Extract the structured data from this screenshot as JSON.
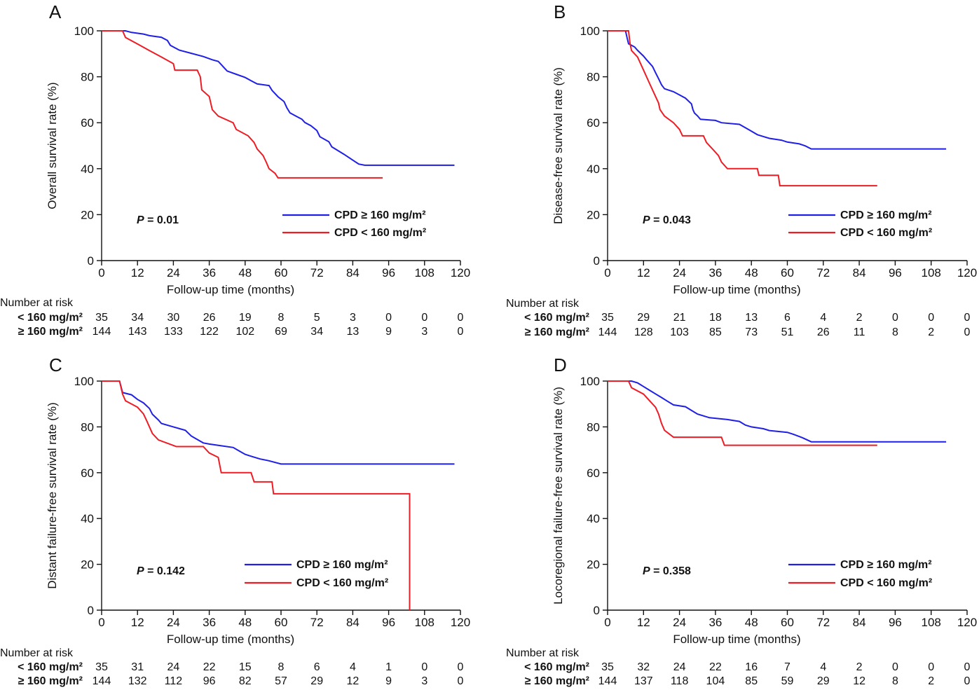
{
  "colors": {
    "blue": "#1f1fe6",
    "red": "#ee1c24",
    "axis": "#111111"
  },
  "chart_data": [
    {
      "type": "line",
      "panel_label": "A",
      "ylabel": "Overall survival rate (%)",
      "xlabel": "Follow-up time (months)",
      "xlim": [
        0,
        120
      ],
      "ylim": [
        0,
        100
      ],
      "xticks": [
        0,
        12,
        24,
        36,
        48,
        60,
        72,
        84,
        96,
        108,
        120
      ],
      "yticks": [
        0,
        20,
        40,
        60,
        80,
        100
      ],
      "p_prefix": "P",
      "p_value": " = 0.01",
      "series": [
        {
          "name": "CPD ≥ 160 mg/m²",
          "color": "#1f1fe6",
          "points": [
            [
              0,
              100
            ],
            [
              8,
              100
            ],
            [
              10,
              99.3
            ],
            [
              14,
              98.6
            ],
            [
              16,
              97.9
            ],
            [
              20,
              97.2
            ],
            [
              22,
              95.8
            ],
            [
              23,
              93.7
            ],
            [
              26,
              91.6
            ],
            [
              30,
              90.2
            ],
            [
              34,
              88.8
            ],
            [
              37,
              87.4
            ],
            [
              39,
              86.7
            ],
            [
              40,
              85.3
            ],
            [
              41,
              83.9
            ],
            [
              42,
              82.5
            ],
            [
              45,
              81.1
            ],
            [
              48,
              79.7
            ],
            [
              50,
              78.3
            ],
            [
              52,
              76.9
            ],
            [
              56,
              76.2
            ],
            [
              57,
              74.1
            ],
            [
              59,
              71.3
            ],
            [
              61,
              69.2
            ],
            [
              62,
              66.4
            ],
            [
              63,
              64.3
            ],
            [
              65,
              62.9
            ],
            [
              67,
              61.5
            ],
            [
              68,
              60.1
            ],
            [
              70,
              58.7
            ],
            [
              72,
              56.6
            ],
            [
              73,
              53.9
            ],
            [
              76,
              51.7
            ],
            [
              77,
              49.5
            ],
            [
              81,
              46.3
            ],
            [
              86,
              42.0
            ],
            [
              88,
              41.5
            ],
            [
              118,
              41.5
            ]
          ]
        },
        {
          "name": "CPD < 160 mg/m²",
          "color": "#ee1c24",
          "points": [
            [
              0,
              100
            ],
            [
              7,
              100
            ],
            [
              8,
              97.1
            ],
            [
              12,
              94.3
            ],
            [
              16,
              91.4
            ],
            [
              20,
              88.6
            ],
            [
              24,
              85.7
            ],
            [
              24.5,
              82.9
            ],
            [
              32,
              82.9
            ],
            [
              33,
              80.0
            ],
            [
              33.5,
              74.3
            ],
            [
              36,
              71.4
            ],
            [
              37,
              65.7
            ],
            [
              39,
              62.9
            ],
            [
              44,
              60.0
            ],
            [
              45,
              57.1
            ],
            [
              49,
              54.3
            ],
            [
              51,
              51.4
            ],
            [
              52,
              48.6
            ],
            [
              54,
              45.7
            ],
            [
              55,
              43.0
            ],
            [
              56,
              40.0
            ],
            [
              58,
              38.0
            ],
            [
              59,
              36.0
            ],
            [
              94,
              36.0
            ]
          ]
        }
      ],
      "risk": {
        "title": "Number at risk",
        "rows": [
          {
            "label": "< 160 mg/m²",
            "values": [
              "35",
              "34",
              "30",
              "26",
              "19",
              "8",
              "5",
              "3",
              "0",
              "0",
              "0"
            ]
          },
          {
            "label": "≥ 160 mg/m²",
            "values": [
              "144",
              "143",
              "133",
              "122",
              "102",
              "69",
              "34",
              "13",
              "9",
              "3",
              "0"
            ]
          }
        ]
      }
    },
    {
      "type": "line",
      "panel_label": "B",
      "ylabel": "Disease-free survival rate (%)",
      "xlabel": "Follow-up time (months)",
      "xlim": [
        0,
        120
      ],
      "ylim": [
        0,
        100
      ],
      "xticks": [
        0,
        12,
        24,
        36,
        48,
        60,
        72,
        84,
        96,
        108,
        120
      ],
      "yticks": [
        0,
        20,
        40,
        60,
        80,
        100
      ],
      "p_prefix": "P",
      "p_value": " = 0.043",
      "series": [
        {
          "name": "CPD ≥ 160 mg/m²",
          "color": "#1f1fe6",
          "points": [
            [
              0,
              100
            ],
            [
              6,
              100
            ],
            [
              6.5,
              97
            ],
            [
              7,
              94.4
            ],
            [
              9,
              93
            ],
            [
              10,
              91.5
            ],
            [
              12,
              89
            ],
            [
              13,
              87.4
            ],
            [
              15,
              84.5
            ],
            [
              16,
              81.8
            ],
            [
              17,
              79.2
            ],
            [
              18,
              76.5
            ],
            [
              19,
              74.8
            ],
            [
              22,
              73.5
            ],
            [
              24,
              72.1
            ],
            [
              26,
              70.7
            ],
            [
              28,
              68.2
            ],
            [
              28.5,
              65.7
            ],
            [
              29,
              64.2
            ],
            [
              30,
              63
            ],
            [
              31,
              61.5
            ],
            [
              36,
              61
            ],
            [
              38,
              60
            ],
            [
              44,
              59.3
            ],
            [
              46,
              57.8
            ],
            [
              48,
              56.3
            ],
            [
              50,
              54.8
            ],
            [
              52,
              54
            ],
            [
              54,
              53.2
            ],
            [
              58,
              52.4
            ],
            [
              60,
              51.6
            ],
            [
              64,
              50.8
            ],
            [
              66,
              49.9
            ],
            [
              68,
              48.6
            ],
            [
              113,
              48.6
            ]
          ]
        },
        {
          "name": "CPD < 160 mg/m²",
          "color": "#ee1c24",
          "points": [
            [
              0,
              100
            ],
            [
              7,
              100
            ],
            [
              7.5,
              94.3
            ],
            [
              8,
              91.4
            ],
            [
              10,
              88.6
            ],
            [
              12,
              82.9
            ],
            [
              13,
              80
            ],
            [
              14,
              77.1
            ],
            [
              15,
              74.3
            ],
            [
              17,
              68.6
            ],
            [
              17.5,
              65.7
            ],
            [
              19,
              62.9
            ],
            [
              22,
              60
            ],
            [
              24,
              57.1
            ],
            [
              25,
              54.3
            ],
            [
              32,
              54.3
            ],
            [
              33,
              51.4
            ],
            [
              35,
              48.6
            ],
            [
              37,
              45.7
            ],
            [
              38,
              42.9
            ],
            [
              40,
              40
            ],
            [
              50,
              40
            ],
            [
              50.5,
              37.1
            ],
            [
              57,
              37.1
            ],
            [
              57.5,
              32.6
            ],
            [
              90,
              32.6
            ]
          ]
        }
      ],
      "risk": {
        "title": "Number at risk",
        "rows": [
          {
            "label": "< 160 mg/m²",
            "values": [
              "35",
              "29",
              "21",
              "18",
              "13",
              "6",
              "4",
              "2",
              "0",
              "0",
              "0"
            ]
          },
          {
            "label": "≥ 160 mg/m²",
            "values": [
              "144",
              "128",
              "103",
              "85",
              "73",
              "51",
              "26",
              "11",
              "8",
              "2",
              "0"
            ]
          }
        ]
      }
    },
    {
      "type": "line",
      "panel_label": "C",
      "ylabel": "Distant failure-free survival rate (%)",
      "xlabel": "Follow-up time (months)",
      "xlim": [
        0,
        120
      ],
      "ylim": [
        0,
        100
      ],
      "xticks": [
        0,
        12,
        24,
        36,
        48,
        60,
        72,
        84,
        96,
        108,
        120
      ],
      "yticks": [
        0,
        20,
        40,
        60,
        80,
        100
      ],
      "p_prefix": "P",
      "p_value": " = 0.142",
      "series": [
        {
          "name": "CPD ≥ 160 mg/m²",
          "color": "#1f1fe6",
          "points": [
            [
              0,
              100
            ],
            [
              6,
              100
            ],
            [
              7,
              95
            ],
            [
              10,
              94
            ],
            [
              12,
              92
            ],
            [
              14,
              90.5
            ],
            [
              16,
              88
            ],
            [
              17,
              85.5
            ],
            [
              19,
              83
            ],
            [
              20,
              81.5
            ],
            [
              24,
              80
            ],
            [
              28,
              78.5
            ],
            [
              30,
              76
            ],
            [
              32,
              74.5
            ],
            [
              34,
              73
            ],
            [
              36,
              72.5
            ],
            [
              44,
              71
            ],
            [
              46,
              69.5
            ],
            [
              48,
              68
            ],
            [
              50,
              67.2
            ],
            [
              53,
              66
            ],
            [
              56,
              65.2
            ],
            [
              60,
              63.8
            ],
            [
              118,
              63.8
            ]
          ]
        },
        {
          "name": "CPD < 160 mg/m²",
          "color": "#ee1c24",
          "points": [
            [
              0,
              100
            ],
            [
              6,
              100
            ],
            [
              7,
              94.3
            ],
            [
              8,
              91.4
            ],
            [
              12,
              88.6
            ],
            [
              14,
              85.7
            ],
            [
              15,
              82.9
            ],
            [
              17,
              77.1
            ],
            [
              19,
              74.3
            ],
            [
              25,
              71.4
            ],
            [
              34,
              71.4
            ],
            [
              36,
              68.6
            ],
            [
              39,
              66.7
            ],
            [
              40,
              60
            ],
            [
              50,
              60
            ],
            [
              51,
              56
            ],
            [
              57,
              56
            ],
            [
              57.5,
              50.8
            ],
            [
              103,
              50.8
            ],
            [
              103,
              0
            ]
          ]
        }
      ],
      "risk": {
        "title": "Number at risk",
        "rows": [
          {
            "label": "< 160 mg/m²",
            "values": [
              "35",
              "31",
              "24",
              "22",
              "15",
              "8",
              "6",
              "4",
              "1",
              "0",
              "0"
            ]
          },
          {
            "label": "≥ 160 mg/m²",
            "values": [
              "144",
              "132",
              "112",
              "96",
              "82",
              "57",
              "29",
              "12",
              "9",
              "3",
              "0"
            ]
          }
        ]
      }
    },
    {
      "type": "line",
      "panel_label": "D",
      "ylabel": "Locoregional failure-free survival rate (%)",
      "xlabel": "Follow-up time (months)",
      "xlim": [
        0,
        120
      ],
      "ylim": [
        0,
        100
      ],
      "xticks": [
        0,
        12,
        24,
        36,
        48,
        60,
        72,
        84,
        96,
        108,
        120
      ],
      "yticks": [
        0,
        20,
        40,
        60,
        80,
        100
      ],
      "p_prefix": "P",
      "p_value": " = 0.358",
      "series": [
        {
          "name": "CPD ≥ 160 mg/m²",
          "color": "#1f1fe6",
          "points": [
            [
              0,
              100
            ],
            [
              8,
              100
            ],
            [
              10,
              99.2
            ],
            [
              12,
              97.6
            ],
            [
              14,
              96
            ],
            [
              16,
              94.4
            ],
            [
              18,
              92.8
            ],
            [
              20,
              91.2
            ],
            [
              22,
              89.6
            ],
            [
              26,
              88.8
            ],
            [
              28,
              87.2
            ],
            [
              30,
              85.6
            ],
            [
              32,
              84.8
            ],
            [
              34,
              84
            ],
            [
              40,
              83.2
            ],
            [
              44,
              82.4
            ],
            [
              46,
              80.8
            ],
            [
              48,
              80
            ],
            [
              52,
              79.2
            ],
            [
              54,
              78.4
            ],
            [
              60,
              77.6
            ],
            [
              62,
              76.8
            ],
            [
              65,
              75.3
            ],
            [
              68,
              73.5
            ],
            [
              113,
              73.5
            ]
          ]
        },
        {
          "name": "CPD < 160 mg/m²",
          "color": "#ee1c24",
          "points": [
            [
              0,
              100
            ],
            [
              7,
              100
            ],
            [
              8,
              97.1
            ],
            [
              12,
              94.3
            ],
            [
              14,
              91.4
            ],
            [
              16,
              88.6
            ],
            [
              17,
              85.7
            ],
            [
              18,
              81.5
            ],
            [
              19,
              78.5
            ],
            [
              22,
              75.5
            ],
            [
              38,
              75.5
            ],
            [
              39,
              72
            ],
            [
              90,
              72
            ]
          ]
        }
      ],
      "risk": {
        "title": "Number at risk",
        "rows": [
          {
            "label": "< 160 mg/m²",
            "values": [
              "35",
              "32",
              "24",
              "22",
              "16",
              "7",
              "4",
              "2",
              "0",
              "0",
              "0"
            ]
          },
          {
            "label": "≥ 160 mg/m²",
            "values": [
              "144",
              "137",
              "118",
              "104",
              "85",
              "59",
              "29",
              "12",
              "8",
              "2",
              "0"
            ]
          }
        ]
      }
    }
  ]
}
